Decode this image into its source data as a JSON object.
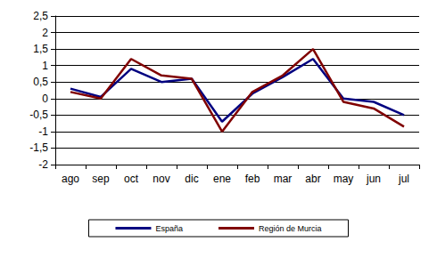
{
  "chart_data": {
    "type": "line",
    "categories": [
      "ago",
      "sep",
      "oct",
      "nov",
      "dic",
      "ene",
      "feb",
      "mar",
      "abr",
      "may",
      "jun",
      "jul"
    ],
    "series": [
      {
        "name": "España",
        "color": "#000080",
        "values": [
          0.3,
          0.05,
          0.9,
          0.5,
          0.6,
          -0.7,
          0.15,
          0.65,
          1.2,
          0.0,
          -0.1,
          -0.5
        ]
      },
      {
        "name": "Región de Murcia",
        "color": "#800000",
        "values": [
          0.2,
          0.0,
          1.2,
          0.7,
          0.6,
          -1.0,
          0.2,
          0.7,
          1.5,
          -0.1,
          -0.3,
          -0.85
        ]
      }
    ],
    "ylim": [
      -2,
      2.5
    ],
    "yticks": [
      {
        "value": -2,
        "label": "-2"
      },
      {
        "value": -1.5,
        "label": "-1,5"
      },
      {
        "value": -1,
        "label": "-1"
      },
      {
        "value": -0.5,
        "label": "-0,5"
      },
      {
        "value": 0,
        "label": "0"
      },
      {
        "value": 0.5,
        "label": "0,5"
      },
      {
        "value": 1,
        "label": "1"
      },
      {
        "value": 1.5,
        "label": "1,5"
      },
      {
        "value": 2,
        "label": "2"
      },
      {
        "value": 2.5,
        "label": "2,5"
      }
    ],
    "grid": true,
    "legend": "bottom"
  }
}
